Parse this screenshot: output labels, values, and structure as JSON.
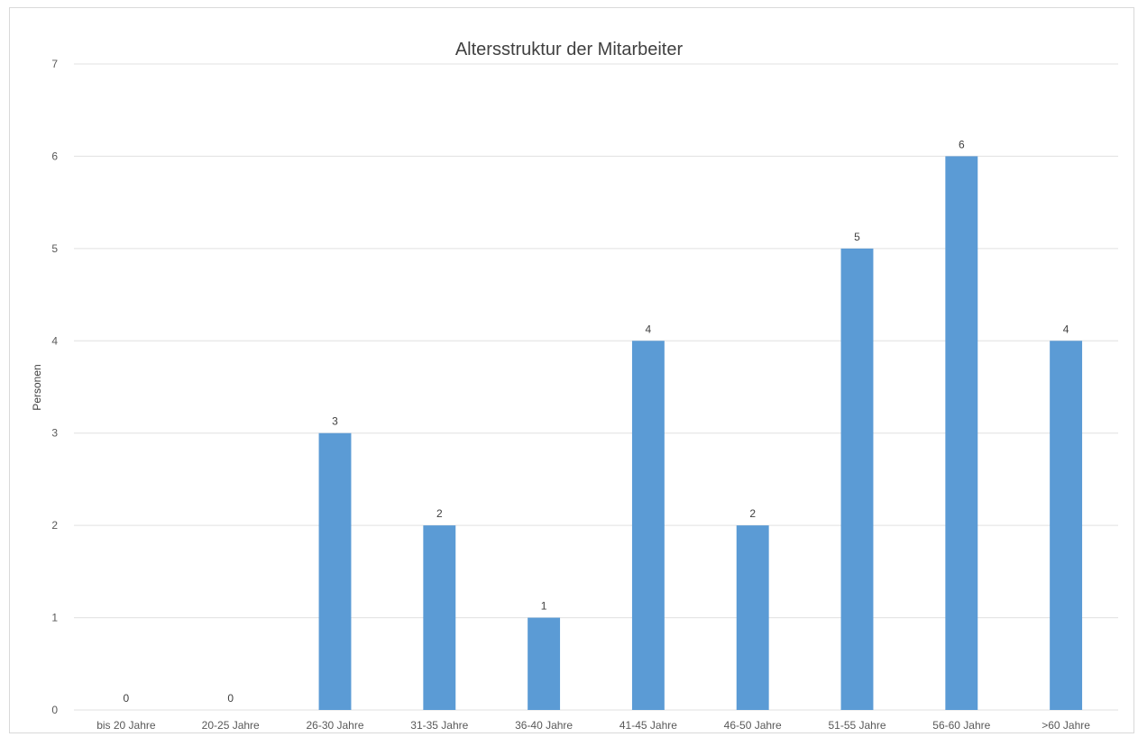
{
  "chart_data": {
    "type": "bar",
    "title": "Altersstruktur der Mitarbeiter",
    "xlabel": "",
    "ylabel": "Personen",
    "categories": [
      "bis 20 Jahre",
      "20-25 Jahre",
      "26-30 Jahre",
      "31-35 Jahre",
      "36-40 Jahre",
      "41-45 Jahre",
      "46-50 Jahre",
      "51-55 Jahre",
      "56-60 Jahre",
      ">60 Jahre"
    ],
    "values": [
      0,
      0,
      3,
      2,
      1,
      4,
      2,
      5,
      6,
      4
    ],
    "yticks": [
      0,
      1,
      2,
      3,
      4,
      5,
      6,
      7
    ],
    "ylim": [
      0,
      7
    ],
    "grid": true,
    "data_labels": true,
    "bar_color": "#5b9bd5"
  }
}
